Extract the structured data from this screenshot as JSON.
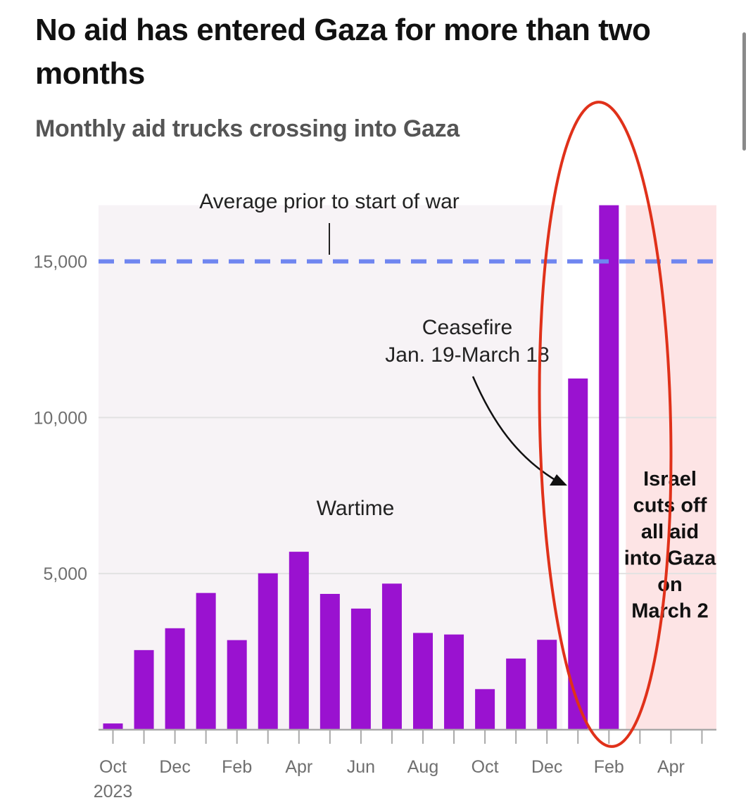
{
  "page": {
    "title": "No aid has entered Gaza for more than two months",
    "subtitle": "Monthly aid trucks crossing into Gaza"
  },
  "chart_data": {
    "type": "bar",
    "categories": [
      "Oct 2023",
      "Nov 2023",
      "Dec 2023",
      "Jan 2024",
      "Feb 2024",
      "Mar 2024",
      "Apr 2024",
      "May 2024",
      "Jun 2024",
      "Jul 2024",
      "Aug 2024",
      "Sep 2024",
      "Oct 2024",
      "Nov 2024",
      "Dec 2024",
      "Jan 2025",
      "Feb 2025",
      "Mar 2025",
      "Apr 2025",
      "May 2025"
    ],
    "values": [
      200,
      2550,
      3250,
      4380,
      2870,
      5010,
      5700,
      4350,
      3880,
      4680,
      3100,
      3050,
      1300,
      2280,
      2880,
      11250,
      16800,
      null,
      null,
      null
    ],
    "ylim": [
      0,
      16800
    ],
    "yticks": [
      5000,
      10000,
      15000
    ],
    "ytick_labels": [
      "5,000",
      "10,000",
      "15,000"
    ],
    "xtick_labels": [
      "Oct",
      "Dec",
      "Feb",
      "Apr",
      "Jun",
      "Aug",
      "Oct",
      "Dec",
      "Feb",
      "Apr"
    ],
    "xtick_sublabel": "2023",
    "reference_line": {
      "value": 15000,
      "label": "Average prior to start of war"
    },
    "annotations": {
      "wartime": "Wartime",
      "ceasefire_line1": "Ceasefire",
      "ceasefire_line2": "Jan. 19-March 18",
      "cutoff_lines": [
        "Israel",
        "cuts off",
        "all aid",
        "into Gaza",
        "on",
        "March 2"
      ]
    },
    "colors": {
      "bar": "#9a12d0",
      "reference_line": "#6f86f0",
      "wartime_band": "#f7f3f6",
      "cutoff_band": "#fde4e5",
      "highlight_ellipse": "#e0311a"
    },
    "grid": true
  }
}
